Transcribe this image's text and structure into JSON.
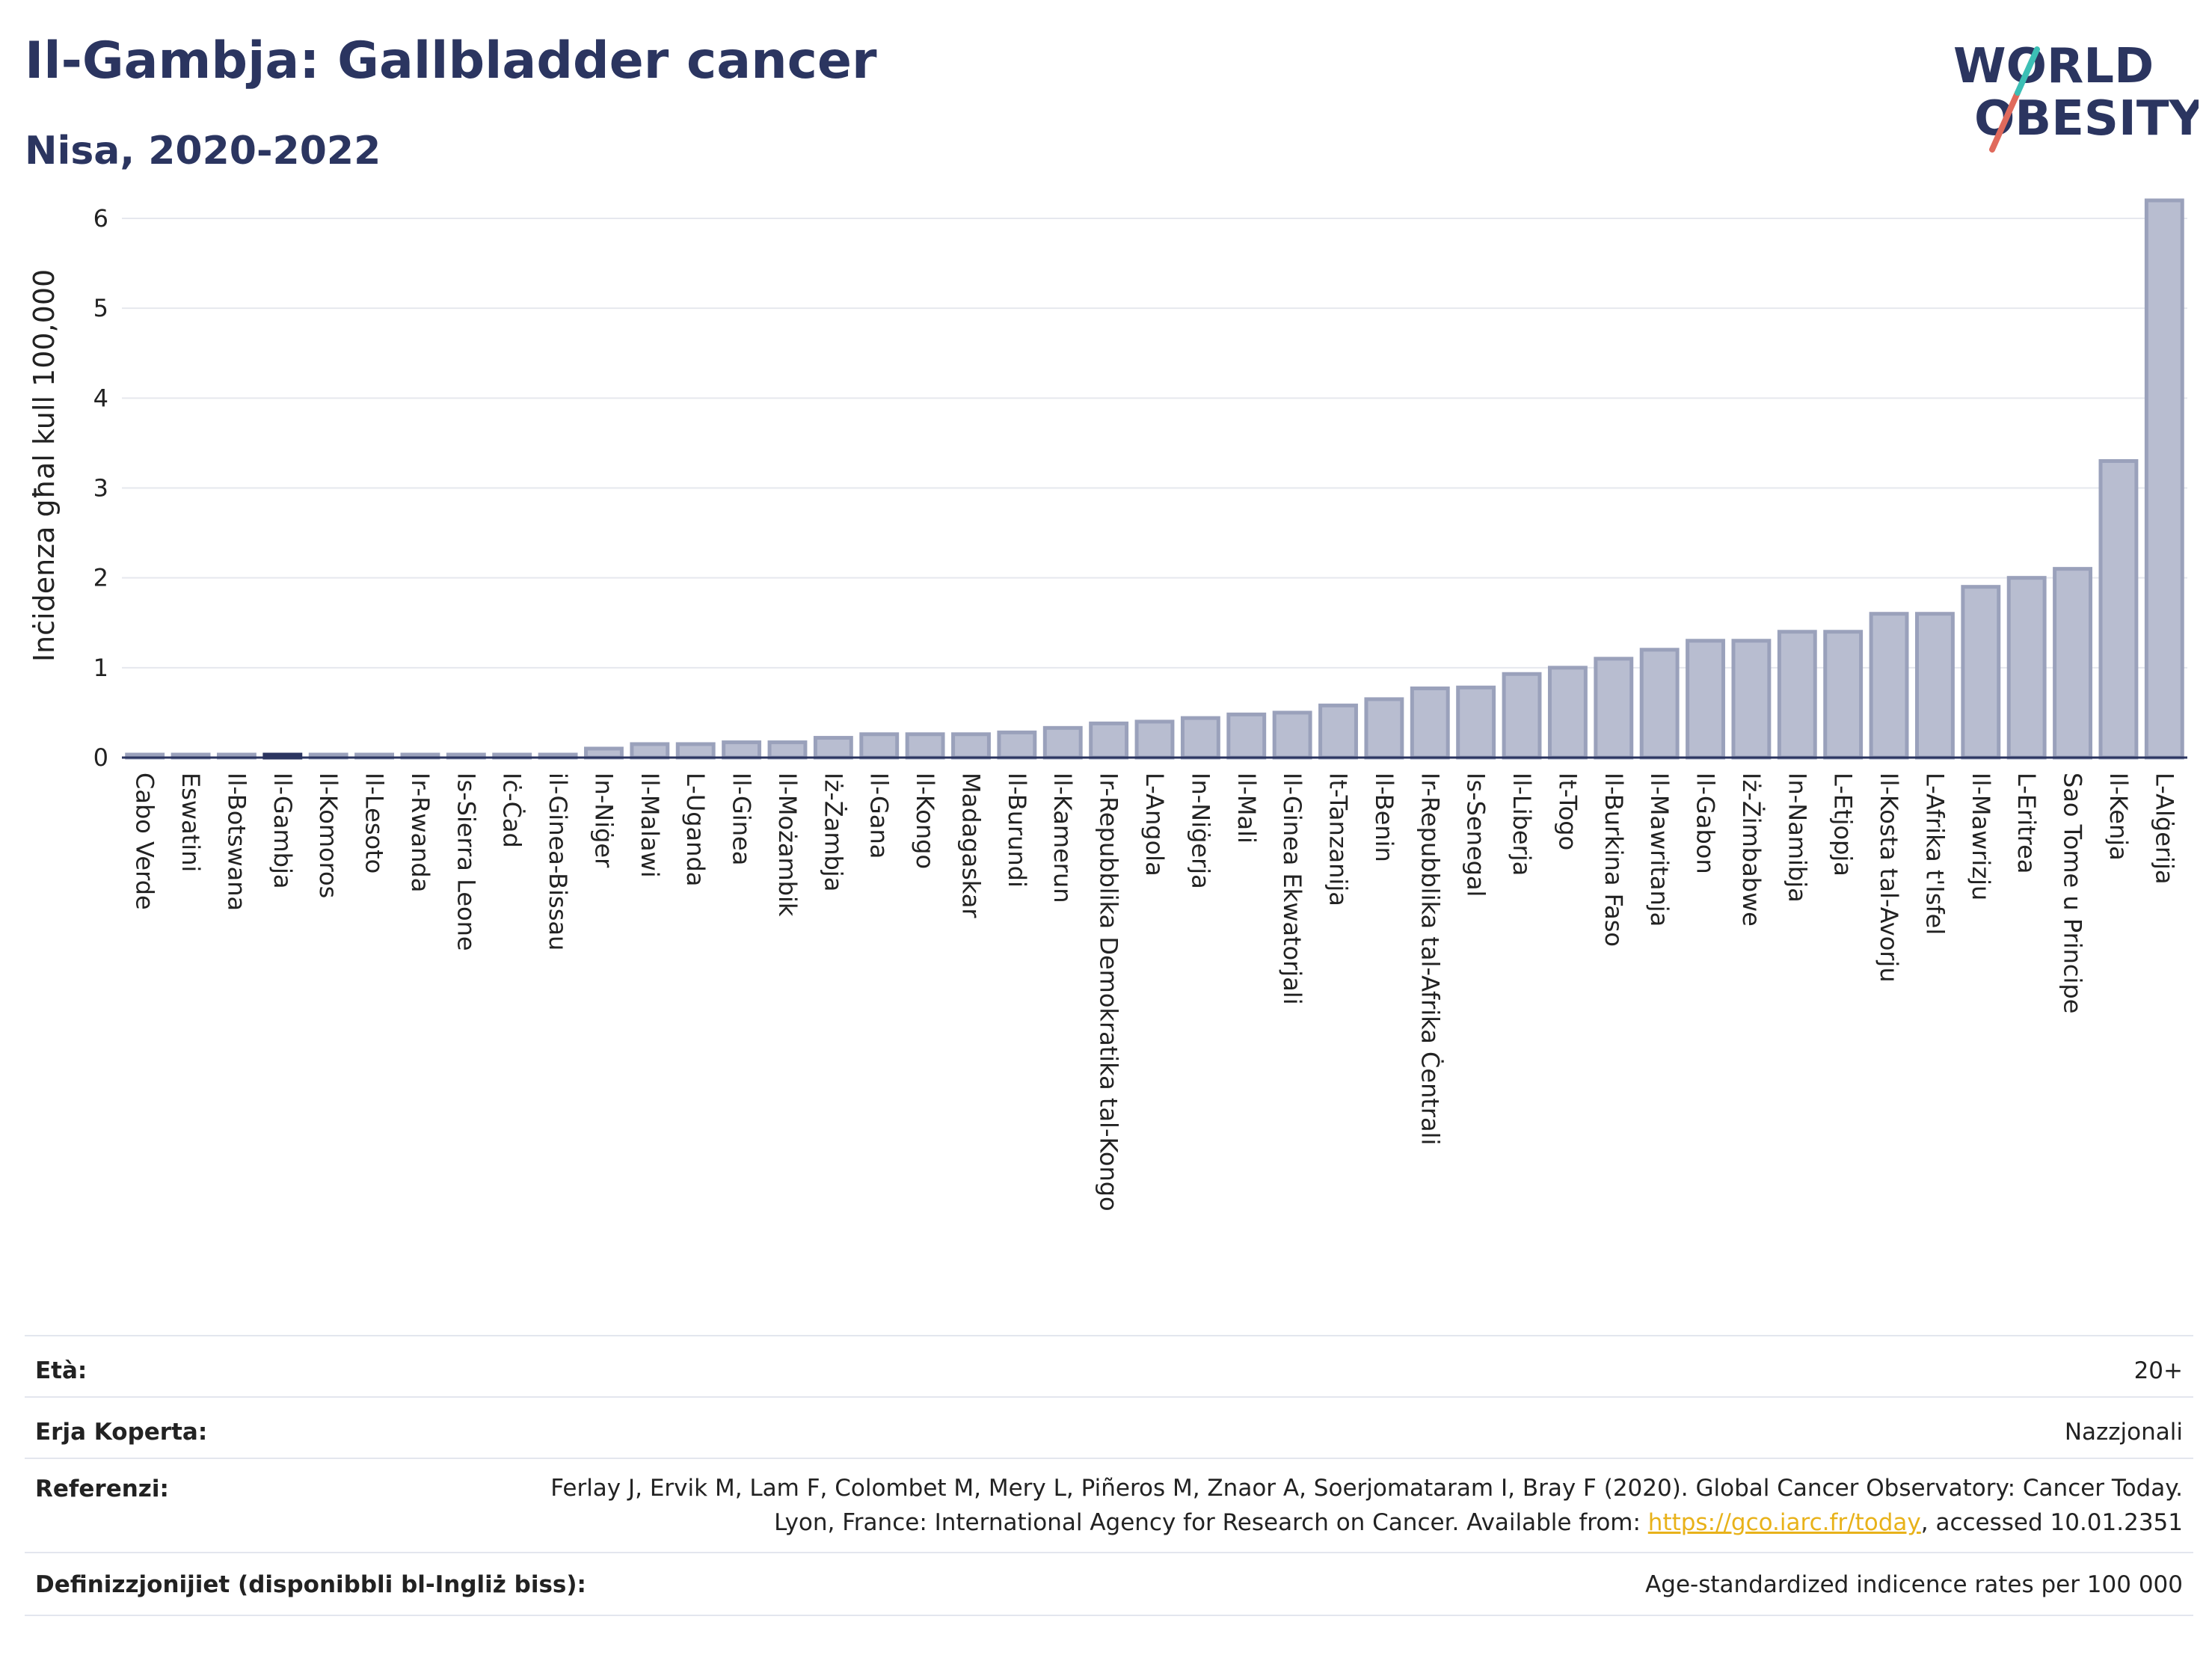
{
  "header": {
    "title": "Il-Gambja: Gallbladder cancer",
    "subtitle": "Nisa, 2020-2022"
  },
  "logo": {
    "line1": "WORLD",
    "line2": "OBESITY"
  },
  "colors": {
    "bar_fill": "#b8bdd0",
    "bar_stroke": "#9aa1bb",
    "highlight": "#2b3560",
    "title": "#2b3560",
    "link": "#e8b21a"
  },
  "chart_data": {
    "type": "bar",
    "ylabel": "Inċidenza għal kull 100,000",
    "ylim": [
      0,
      6.5
    ],
    "yticks": [
      0,
      1,
      2,
      3,
      4,
      5,
      6
    ],
    "highlight": "Il-Gambja",
    "categories": [
      "Cabo Verde",
      "Eswatini",
      "Il-Botswana",
      "Il-Gambja",
      "Il-Komoros",
      "Il-Lesoto",
      "Ir-Rwanda",
      "Is-Sierra Leone",
      "Iċ-Ċad",
      "il-Ginea-Bissau",
      "In-Niġer",
      "Il-Malawi",
      "L-Uganda",
      "Il-Ginea",
      "Il-Możambik",
      "Iż-Żambja",
      "Il-Gana",
      "Il-Kongo",
      "Madagaskar",
      "Il-Burundi",
      "Il-Kamerun",
      "Ir-Repubblika Demokratika tal-Kongo",
      "L-Angola",
      "In-Niġerja",
      "Il-Mali",
      "Il-Ginea Ekwatorjali",
      "It-Tanzanija",
      "Il-Benin",
      "Ir-Repubblika tal-Afrika Ċentrali",
      "Is-Senegal",
      "Il-Liberja",
      "It-Togo",
      "Il-Burkina Faso",
      "Il-Mawritanja",
      "Il-Gabon",
      "Iż-Żimbabwe",
      "In-Namibja",
      "L-Etjopja",
      "Il-Kosta tal-Avorju",
      "L-Afrika t'Isfel",
      "Il-Mawrizju",
      "L-Eritrea",
      "Sao Tome u Principe",
      "Il-Kenja",
      "L-Alġerija"
    ],
    "values": [
      0.02,
      0.02,
      0.02,
      0.02,
      0.02,
      0.02,
      0.02,
      0.02,
      0.02,
      0.02,
      0.1,
      0.15,
      0.15,
      0.17,
      0.17,
      0.22,
      0.26,
      0.26,
      0.26,
      0.28,
      0.33,
      0.38,
      0.4,
      0.44,
      0.48,
      0.5,
      0.58,
      0.65,
      0.77,
      0.78,
      0.93,
      1.0,
      1.1,
      1.2,
      1.3,
      1.3,
      1.4,
      1.4,
      1.6,
      1.6,
      1.9,
      2.0,
      2.1,
      3.3,
      6.2
    ]
  },
  "info": {
    "age_label": "Età:",
    "age_value": "20+",
    "area_label": "Erja Koperta:",
    "area_value": "Nazzjonali",
    "ref_label": "Referenzi:",
    "ref_text_1": "Ferlay J, Ervik M, Lam F, Colombet M, Mery L, Piñeros M, Znaor A, Soerjomataram I, Bray F (2020). Global Cancer Observatory: Cancer Today. Lyon, France: International Agency for Research on Cancer. Available from: ",
    "ref_link": "https://gco.iarc.fr/today",
    "ref_text_2": ", accessed 10.01.2351",
    "def_label": "Definizzjonijiet (disponibbli bl-Ingliż biss):",
    "def_value": "Age-standardized indicence rates per 100 000"
  }
}
